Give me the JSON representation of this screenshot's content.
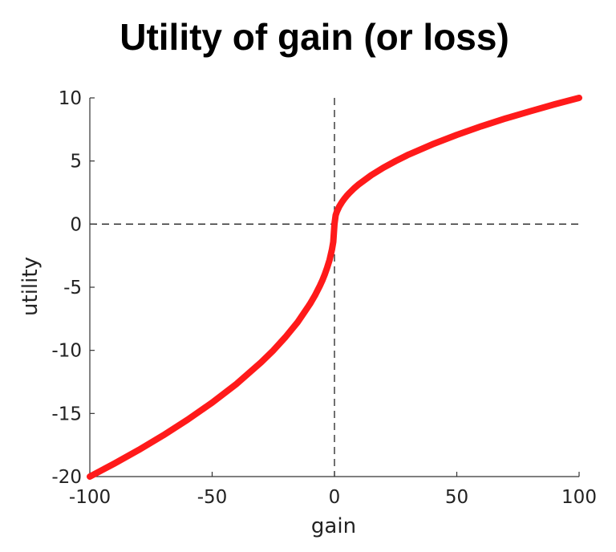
{
  "chart_data": {
    "type": "line",
    "title": "Utility of gain (or loss)",
    "xlabel": "gain",
    "ylabel": "utility",
    "xlim": [
      -100,
      100
    ],
    "ylim": [
      -20,
      10
    ],
    "xticks": [
      -100,
      -50,
      0,
      50,
      100
    ],
    "yticks": [
      -20,
      -15,
      -10,
      -5,
      0,
      5,
      10
    ],
    "xtick_labels": [
      "-100",
      "-50",
      "0",
      "50",
      "100"
    ],
    "ytick_labels": [
      "-20",
      "-15",
      "-10",
      "-5",
      "0",
      "5",
      "10"
    ],
    "reference_lines": [
      {
        "orientation": "vertical",
        "at": 0,
        "style": "dashed"
      },
      {
        "orientation": "horizontal",
        "at": 0,
        "style": "dashed"
      }
    ],
    "grid": false,
    "series": [
      {
        "color": "#ff1a1a",
        "x": [
          -100,
          -90,
          -80,
          -70,
          -60,
          -50,
          -40,
          -30,
          -25,
          -20,
          -15,
          -10,
          -8,
          -6,
          -5,
          -4,
          -3,
          -2,
          -1,
          -0.5,
          0,
          0.5,
          1,
          2,
          3,
          4,
          5,
          6,
          8,
          10,
          15,
          20,
          25,
          30,
          40,
          50,
          60,
          70,
          80,
          90,
          100
        ],
        "y": [
          -20,
          -18.97,
          -17.89,
          -16.73,
          -15.49,
          -14.14,
          -12.65,
          -10.95,
          -10.0,
          -8.94,
          -7.75,
          -6.32,
          -5.66,
          -4.9,
          -4.47,
          -4.0,
          -3.46,
          -2.83,
          -2.0,
          -1.41,
          0,
          0.71,
          1.0,
          1.41,
          1.73,
          2.0,
          2.24,
          2.45,
          2.83,
          3.16,
          3.87,
          4.47,
          5.0,
          5.48,
          6.32,
          7.07,
          7.75,
          8.37,
          8.94,
          9.49,
          10.0
        ]
      }
    ]
  }
}
